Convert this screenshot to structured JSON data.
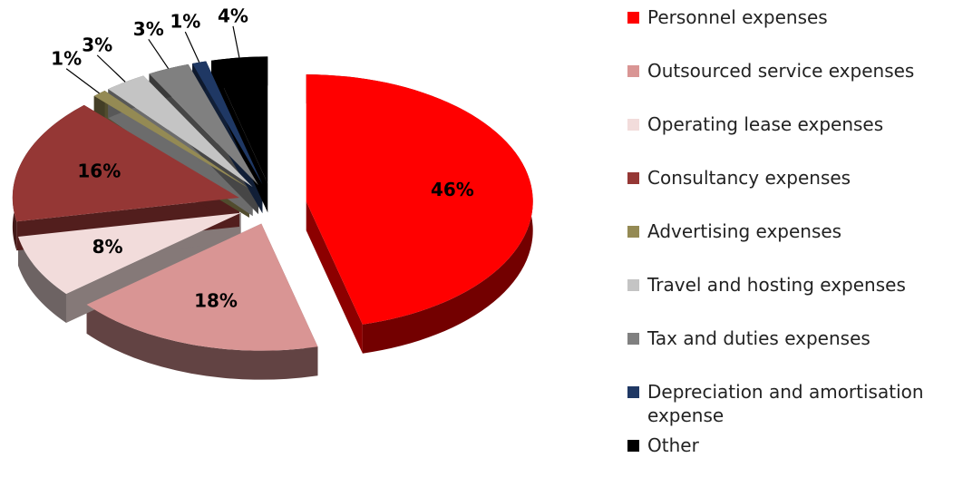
{
  "chart_data": {
    "type": "pie",
    "categories": [
      "Personnel expenses",
      "Outsourced service expenses",
      "Operating lease expenses",
      "Consultancy expenses",
      "Advertising expenses",
      "Travel and hosting expenses",
      "Tax and duties expenses",
      "Depreciation and amortisation expense",
      "Other"
    ],
    "values": [
      46,
      18,
      8,
      16,
      1,
      3,
      3,
      1,
      4
    ],
    "value_labels": [
      "46%",
      "18%",
      "8%",
      "16%",
      "1%",
      "3%",
      "3%",
      "1%",
      "4%"
    ],
    "colors": [
      "#ff0000",
      "#d99594",
      "#f2dcdb",
      "#953735",
      "#948a54",
      "#c4c4c4",
      "#808080",
      "#1f3864",
      "#000000"
    ],
    "legend": "right"
  }
}
